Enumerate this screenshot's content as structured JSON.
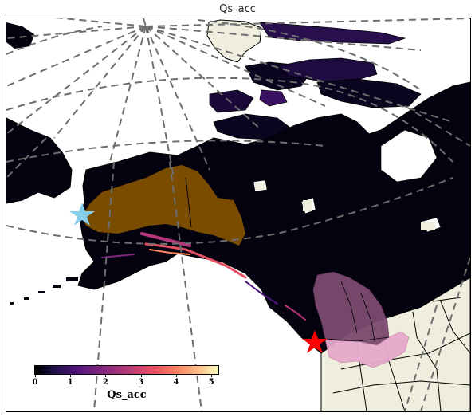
{
  "map": {
    "title": "Qs_acc",
    "projection": "polar stereographic",
    "graticule": "dashed",
    "colormap": "magma",
    "colors": {
      "ocean": "#ffffff",
      "land_no_data": "#efedde",
      "data_low": "#000004",
      "alaska_basin": "#7f5000",
      "columbia_basin_canada": "#7d4a70",
      "columbia_basin_us": "#e7a8cc",
      "graticule": "#6e6e6e"
    },
    "markers": [
      {
        "name": "blue-star",
        "color": "#87ceeb"
      },
      {
        "name": "red-star",
        "color": "#ff0000"
      }
    ]
  },
  "colorbar": {
    "label": "Qs_acc",
    "ticks": [
      "0",
      "1",
      "2",
      "3",
      "4",
      "5"
    ],
    "range": [
      0,
      5.2
    ]
  }
}
